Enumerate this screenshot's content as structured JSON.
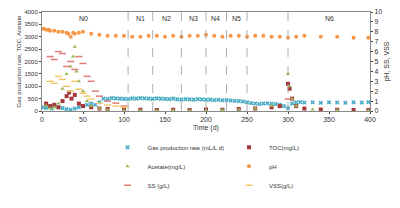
{
  "chart_data": {
    "type": "scatter",
    "x_label": "Time (d)",
    "y_label": "Gas production rate, TOC, Acetate",
    "y2_label": "pH, SS, VSS",
    "xlim": [
      0,
      400
    ],
    "xticks": [
      0,
      50,
      100,
      150,
      200,
      250,
      300,
      350,
      400
    ],
    "ylim": [
      0,
      4000
    ],
    "yticks": [
      0,
      500,
      1000,
      1500,
      2000,
      2500,
      3000,
      3500,
      4000
    ],
    "y2lim": [
      0,
      10
    ],
    "y2ticks": [
      0,
      1,
      2,
      3,
      4,
      5,
      6,
      7,
      8,
      9,
      10
    ],
    "grid": false,
    "legend": "bottom",
    "dividers": [
      105,
      135,
      170,
      200,
      225,
      250,
      300
    ],
    "annotations": [
      {
        "text": "N0",
        "x": 50
      },
      {
        "text": "N1",
        "x": 120
      },
      {
        "text": "N2",
        "x": 152
      },
      {
        "text": "N3",
        "x": 185
      },
      {
        "text": "N4",
        "x": 212
      },
      {
        "text": "N5",
        "x": 237
      },
      {
        "text": "N6",
        "x": 350
      }
    ],
    "series": [
      {
        "name": "Gas production rate (mL/L d)",
        "color": "#4bacc6",
        "marker": "x",
        "x": [
          2,
          5,
          8,
          12,
          15,
          20,
          25,
          30,
          35,
          40,
          45,
          50,
          55,
          60,
          65,
          70,
          75,
          80,
          85,
          90,
          95,
          100,
          105,
          110,
          115,
          120,
          125,
          130,
          135,
          140,
          145,
          150,
          155,
          160,
          165,
          170,
          175,
          180,
          185,
          190,
          195,
          200,
          205,
          210,
          215,
          220,
          225,
          230,
          235,
          240,
          245,
          250,
          255,
          260,
          265,
          270,
          275,
          280,
          285,
          290,
          295,
          300,
          305,
          310,
          315,
          320,
          330,
          340,
          350,
          360,
          370,
          380,
          390,
          398
        ],
        "values": [
          150,
          120,
          180,
          100,
          200,
          150,
          120,
          80,
          50,
          100,
          150,
          200,
          250,
          300,
          250,
          350,
          500,
          480,
          520,
          510,
          500,
          490,
          480,
          510,
          500,
          520,
          510,
          500,
          490,
          510,
          500,
          490,
          480,
          500,
          470,
          460,
          480,
          470,
          460,
          480,
          470,
          450,
          460,
          440,
          450,
          430,
          440,
          420,
          410,
          400,
          380,
          350,
          320,
          300,
          280,
          300,
          310,
          290,
          280,
          250,
          200,
          120,
          300,
          350,
          360,
          340,
          350,
          330,
          350,
          340,
          330,
          350,
          340,
          360
        ]
      },
      {
        "name": "TOC(mg/L)",
        "color": "#a5373a",
        "marker": "square",
        "x": [
          5,
          10,
          15,
          20,
          25,
          30,
          33,
          36,
          40,
          45,
          50,
          60,
          70,
          80,
          100,
          120,
          140,
          160,
          180,
          200,
          220,
          240,
          260,
          280,
          290,
          300,
          302,
          305,
          310,
          320,
          340,
          360,
          380,
          398
        ],
        "values": [
          300,
          200,
          250,
          150,
          400,
          600,
          750,
          500,
          650,
          300,
          200,
          150,
          100,
          80,
          60,
          50,
          40,
          50,
          40,
          60,
          50,
          80,
          100,
          150,
          200,
          1100,
          900,
          500,
          200,
          100,
          60,
          50,
          40,
          40
        ]
      },
      {
        "name": "Acetate(mg/L)",
        "color": "#9bbb59",
        "marker": "triangle-up",
        "x": [
          5,
          10,
          15,
          20,
          25,
          30,
          35,
          38,
          40,
          42,
          45,
          50,
          55,
          60,
          70,
          80,
          100,
          120,
          140,
          160,
          180,
          200,
          220,
          240,
          260,
          280,
          300,
          302,
          305,
          310,
          330,
          360,
          398
        ],
        "values": [
          200,
          100,
          150,
          300,
          900,
          1500,
          1800,
          2200,
          2600,
          1600,
          1200,
          800,
          400,
          200,
          100,
          50,
          30,
          20,
          20,
          30,
          20,
          30,
          40,
          50,
          100,
          200,
          1500,
          1000,
          500,
          200,
          60,
          30,
          20
        ]
      },
      {
        "name": "pH",
        "color": "#f79646",
        "marker": "circle",
        "axis": "y2",
        "x": [
          2,
          5,
          8,
          10,
          15,
          20,
          25,
          30,
          32,
          35,
          38,
          40,
          45,
          50,
          60,
          70,
          80,
          90,
          100,
          110,
          120,
          130,
          140,
          150,
          160,
          170,
          180,
          190,
          200,
          210,
          220,
          230,
          240,
          250,
          260,
          270,
          280,
          290,
          300,
          310,
          320,
          340,
          360,
          380,
          398
        ],
        "values": [
          8.3,
          8.2,
          8.2,
          8.1,
          8.1,
          8.0,
          8.0,
          7.9,
          7.8,
          7.5,
          7.9,
          7.8,
          7.9,
          8.0,
          7.8,
          7.7,
          7.6,
          7.6,
          7.6,
          7.5,
          7.5,
          7.6,
          7.6,
          7.5,
          7.6,
          7.5,
          7.6,
          7.6,
          7.7,
          7.6,
          7.5,
          7.6,
          7.6,
          7.5,
          7.6,
          7.6,
          7.5,
          7.5,
          7.4,
          7.5,
          7.6,
          7.5,
          7.5,
          7.4,
          7.4
        ]
      },
      {
        "name": "SS (g/L)",
        "color": "#e07b78",
        "marker": "line-ew",
        "axis": "y2",
        "x": [
          10,
          15,
          20,
          25,
          30,
          35,
          40,
          45,
          50,
          55,
          60,
          65,
          70,
          80,
          90,
          100,
          300
        ],
        "values": [
          5.5,
          5.2,
          6.0,
          5.8,
          4.5,
          5.0,
          4.2,
          5.5,
          4.8,
          3.5,
          3.0,
          2.0,
          1.5,
          1.0,
          0.8,
          0.5,
          1.2
        ]
      },
      {
        "name": "VSS(g/L)",
        "color": "#f5c96b",
        "marker": "line-ew",
        "axis": "y2",
        "x": [
          10,
          15,
          20,
          25,
          30,
          35,
          40,
          45,
          50,
          55,
          60,
          70,
          80,
          90,
          100
        ],
        "values": [
          3.0,
          2.8,
          3.5,
          3.2,
          2.5,
          2.0,
          3.0,
          2.2,
          1.8,
          1.5,
          1.2,
          0.8,
          0.6,
          0.5,
          0.4
        ]
      }
    ]
  }
}
